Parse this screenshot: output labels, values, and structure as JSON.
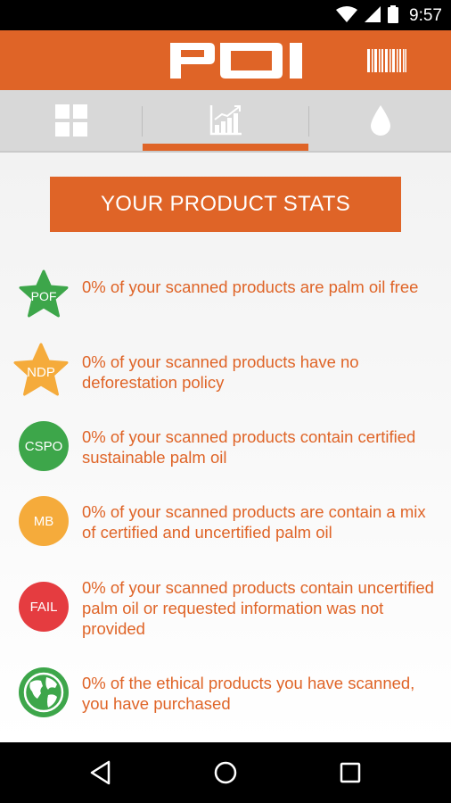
{
  "status_bar": {
    "time": "9:57",
    "icons": [
      "wifi-icon",
      "signal-icon",
      "battery-icon"
    ]
  },
  "app_bar": {
    "logo_text": "POI",
    "action_icon": "barcode-icon"
  },
  "tabs": [
    {
      "icon": "grid-icon",
      "selected": false
    },
    {
      "icon": "stats-chart-icon",
      "selected": true
    },
    {
      "icon": "drop-icon",
      "selected": false
    }
  ],
  "colors": {
    "accent": "#df6427",
    "green": "#3da64a",
    "yellow": "#f5ab3b",
    "red": "#e53c40"
  },
  "stats_title": "YOUR PRODUCT STATS",
  "stats": [
    {
      "badge": "POF",
      "shape": "star",
      "color": "#3da64a",
      "text": "0% of your scanned products are palm oil free"
    },
    {
      "badge": "NDP",
      "shape": "star",
      "color": "#f5ab3b",
      "text": "0% of your scanned products have no deforestation policy"
    },
    {
      "badge": "CSPO",
      "shape": "circle",
      "color": "#3da64a",
      "text": "0% of your scanned products contain certified sustainable palm oil"
    },
    {
      "badge": "MB",
      "shape": "circle",
      "color": "#f5ab3b",
      "text": "0% of your scanned products are contain a mix of certified and uncertified palm oil"
    },
    {
      "badge": "FAIL",
      "shape": "circle",
      "color": "#e53c40",
      "text": "0% of your scanned products contain uncertified palm oil or requested information was not provided"
    },
    {
      "badge": "",
      "shape": "globe",
      "color": "#3da64a",
      "text": "0% of the ethical products you have scanned, you have purchased"
    }
  ],
  "nav": [
    "back-icon",
    "home-icon",
    "recents-icon"
  ]
}
